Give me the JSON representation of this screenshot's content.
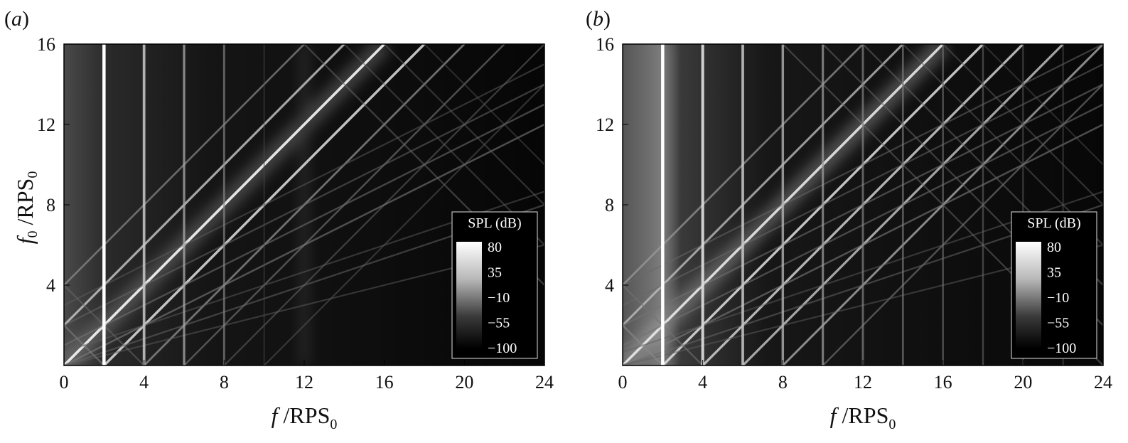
{
  "chart_data": [
    {
      "type": "heatmap",
      "panel_label": "(a)",
      "title": "",
      "xlabel": "f / RPS0",
      "ylabel": "f0 / RPS0",
      "xlim": [
        0,
        24
      ],
      "ylim": [
        0,
        16
      ],
      "xticks": [
        "0",
        "4",
        "8",
        "12",
        "16",
        "20",
        "24"
      ],
      "yticks": [
        "4",
        "8",
        "12",
        "16"
      ],
      "colorbar": {
        "title": "SPL (dB)",
        "ticks": [
          "80",
          "35",
          "−10",
          "−55",
          "−100"
        ],
        "range": [
          -100,
          80
        ],
        "placement": "lower-right"
      },
      "vertical_tones": [
        {
          "x": 2,
          "level": 1.0
        },
        {
          "x": 4,
          "level": 0.75
        },
        {
          "x": 6,
          "level": 0.6
        },
        {
          "x": 8,
          "level": 0.45
        },
        {
          "x": 10,
          "level": 0.15
        }
      ],
      "sloped_tones": [
        {
          "slope": 1,
          "offset": 0,
          "level": 0.95
        },
        {
          "slope": 1,
          "offset": 2,
          "level": 0.85
        },
        {
          "slope": 1,
          "offset": -2,
          "level": 0.75
        },
        {
          "slope": 1,
          "offset": 4,
          "level": 0.55
        },
        {
          "slope": 1,
          "offset": -4,
          "level": 0.5
        },
        {
          "slope": 1,
          "offset": 6,
          "level": 0.4
        },
        {
          "slope": 1,
          "offset": 8,
          "level": 0.3
        },
        {
          "slope": 1,
          "offset": 10,
          "level": 0.25
        },
        {
          "slope": 0.5,
          "offset": 0,
          "level": 0.4
        },
        {
          "slope": 0.5,
          "offset": -2,
          "level": 0.35
        },
        {
          "slope": 0.5,
          "offset": -4,
          "level": 0.3
        },
        {
          "slope": 0.5,
          "offset": -6,
          "level": 0.25
        },
        {
          "slope": 0.333,
          "offset": 0,
          "level": 0.3
        },
        {
          "slope": 0.333,
          "offset": -2,
          "level": 0.25
        },
        {
          "slope": 0.25,
          "offset": 0,
          "level": 0.25
        },
        {
          "slope": -1,
          "offset": 2,
          "level": 0.4
        },
        {
          "slope": -1,
          "offset": 4,
          "level": 0.3
        },
        {
          "slope": -1,
          "offset": 28,
          "level": 0.3
        },
        {
          "slope": -1,
          "offset": 30,
          "level": 0.25
        },
        {
          "slope": -1,
          "offset": 32,
          "level": 0.25
        },
        {
          "slope": -1,
          "offset": 34,
          "level": 0.2
        }
      ],
      "broadband": {
        "center_x": 12,
        "width": 3.2,
        "level": 0.28
      }
    },
    {
      "type": "heatmap",
      "panel_label": "(b)",
      "title": "",
      "xlabel": "f / RPS0",
      "ylabel": "",
      "xlim": [
        0,
        24
      ],
      "ylim": [
        0,
        16
      ],
      "xticks": [
        "0",
        "4",
        "8",
        "12",
        "16",
        "20",
        "24"
      ],
      "yticks": [
        "4",
        "8",
        "12",
        "16"
      ],
      "colorbar": {
        "title": "SPL (dB)",
        "ticks": [
          "80",
          "35",
          "−10",
          "−55",
          "−100"
        ],
        "range": [
          -100,
          80
        ],
        "placement": "lower-right"
      },
      "vertical_tones": [
        {
          "x": 2,
          "level": 1.0
        },
        {
          "x": 4,
          "level": 0.85
        },
        {
          "x": 6,
          "level": 0.75
        },
        {
          "x": 8,
          "level": 0.65
        },
        {
          "x": 10,
          "level": 0.55
        },
        {
          "x": 12,
          "level": 0.45
        },
        {
          "x": 14,
          "level": 0.4
        },
        {
          "x": 16,
          "level": 0.35
        },
        {
          "x": 18,
          "level": 0.3
        },
        {
          "x": 20,
          "level": 0.25
        },
        {
          "x": 22,
          "level": 0.2
        }
      ],
      "sloped_tones": [
        {
          "slope": 1,
          "offset": 0,
          "level": 0.9
        },
        {
          "slope": 1,
          "offset": 2,
          "level": 0.85
        },
        {
          "slope": 1,
          "offset": 4,
          "level": 0.8
        },
        {
          "slope": 1,
          "offset": 6,
          "level": 0.75
        },
        {
          "slope": 1,
          "offset": 8,
          "level": 0.65
        },
        {
          "slope": 1,
          "offset": -2,
          "level": 0.7
        },
        {
          "slope": 1,
          "offset": -4,
          "level": 0.55
        },
        {
          "slope": 1,
          "offset": 10,
          "level": 0.4
        },
        {
          "slope": 0.5,
          "offset": 0,
          "level": 0.4
        },
        {
          "slope": 0.5,
          "offset": -2,
          "level": 0.35
        },
        {
          "slope": 0.5,
          "offset": -4,
          "level": 0.35
        },
        {
          "slope": 0.5,
          "offset": -6,
          "level": 0.3
        },
        {
          "slope": 0.5,
          "offset": -8,
          "level": 0.3
        },
        {
          "slope": 0.333,
          "offset": 0,
          "level": 0.3
        },
        {
          "slope": 0.333,
          "offset": -2,
          "level": 0.25
        },
        {
          "slope": 0.25,
          "offset": 0,
          "level": 0.25
        },
        {
          "slope": -1,
          "offset": 2,
          "level": 0.45
        },
        {
          "slope": -1,
          "offset": 4,
          "level": 0.35
        },
        {
          "slope": -1,
          "offset": 24,
          "level": 0.3
        },
        {
          "slope": -1,
          "offset": 26,
          "level": 0.3
        },
        {
          "slope": -1,
          "offset": 28,
          "level": 0.3
        },
        {
          "slope": -1,
          "offset": 30,
          "level": 0.25
        },
        {
          "slope": -1,
          "offset": 32,
          "level": 0.25
        },
        {
          "slope": -1,
          "offset": 34,
          "level": 0.2
        }
      ],
      "broadband": {
        "center_x": 2.2,
        "width": 1.4,
        "level": 0.35
      }
    }
  ]
}
